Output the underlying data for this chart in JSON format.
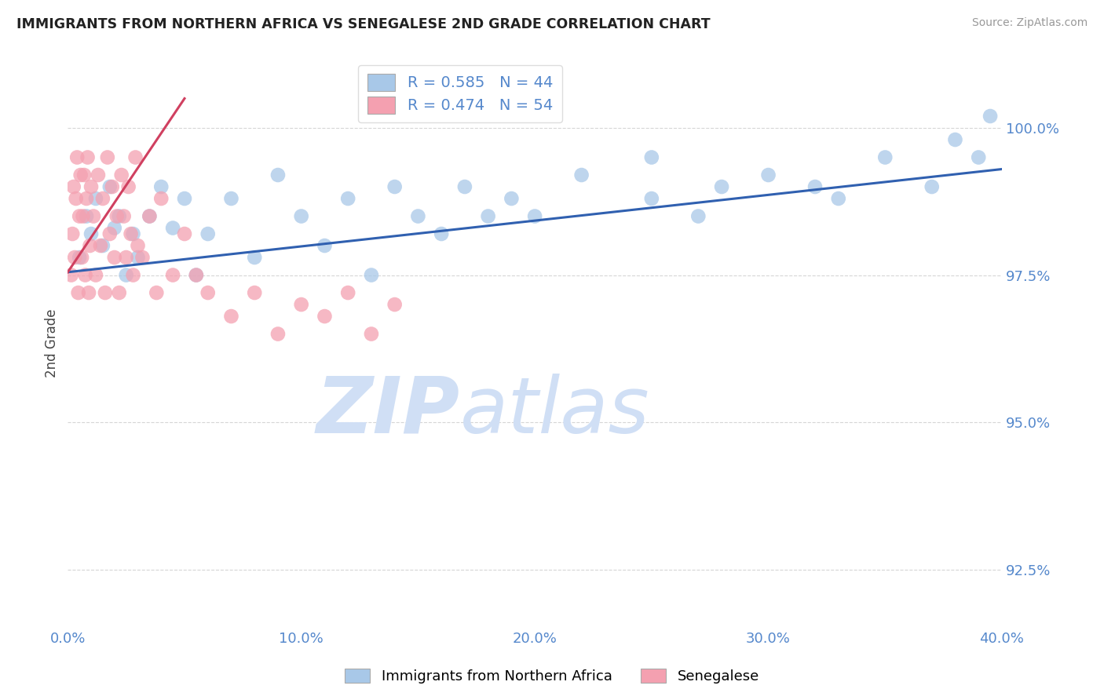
{
  "title": "IMMIGRANTS FROM NORTHERN AFRICA VS SENEGALESE 2ND GRADE CORRELATION CHART",
  "source": "Source: ZipAtlas.com",
  "ylabel": "2nd Grade",
  "xlim": [
    0.0,
    40.0
  ],
  "ylim": [
    91.5,
    101.2
  ],
  "yticks": [
    92.5,
    95.0,
    97.5,
    100.0
  ],
  "xticks": [
    0.0,
    10.0,
    20.0,
    30.0,
    40.0
  ],
  "xtick_labels": [
    "0.0%",
    "10.0%",
    "20.0%",
    "30.0%",
    "40.0%"
  ],
  "ytick_labels": [
    "92.5%",
    "95.0%",
    "97.5%",
    "100.0%"
  ],
  "blue_R": 0.585,
  "blue_N": 44,
  "pink_R": 0.474,
  "pink_N": 54,
  "blue_color": "#a8c8e8",
  "pink_color": "#f4a0b0",
  "blue_line_color": "#3060b0",
  "pink_line_color": "#d04060",
  "watermark_zip": "ZIP",
  "watermark_atlas": "atlas",
  "watermark_color": "#d0dff5",
  "title_color": "#222222",
  "axis_tick_color": "#5588cc",
  "legend_label_color": "#5588cc",
  "legend_R_label_color": "#333333",
  "blue_x": [
    0.5,
    0.8,
    1.0,
    1.2,
    1.5,
    1.8,
    2.0,
    2.2,
    2.5,
    2.8,
    3.0,
    3.5,
    4.0,
    4.5,
    5.0,
    5.5,
    6.0,
    7.0,
    8.0,
    9.0,
    10.0,
    11.0,
    12.0,
    13.0,
    14.0,
    15.0,
    16.0,
    17.0,
    18.0,
    19.0,
    20.0,
    22.0,
    25.0,
    28.0,
    30.0,
    33.0,
    35.0,
    37.0,
    38.0,
    39.0,
    39.5,
    25.0,
    27.0,
    32.0
  ],
  "blue_y": [
    97.8,
    98.5,
    98.2,
    98.8,
    98.0,
    99.0,
    98.3,
    98.5,
    97.5,
    98.2,
    97.8,
    98.5,
    99.0,
    98.3,
    98.8,
    97.5,
    98.2,
    98.8,
    97.8,
    99.2,
    98.5,
    98.0,
    98.8,
    97.5,
    99.0,
    98.5,
    98.2,
    99.0,
    98.5,
    98.8,
    98.5,
    99.2,
    98.8,
    99.0,
    99.2,
    98.8,
    99.5,
    99.0,
    99.8,
    99.5,
    100.2,
    99.5,
    98.5,
    99.0
  ],
  "pink_x": [
    0.15,
    0.2,
    0.25,
    0.3,
    0.35,
    0.4,
    0.45,
    0.5,
    0.55,
    0.6,
    0.65,
    0.7,
    0.75,
    0.8,
    0.85,
    0.9,
    0.95,
    1.0,
    1.1,
    1.2,
    1.3,
    1.4,
    1.5,
    1.6,
    1.7,
    1.8,
    1.9,
    2.0,
    2.1,
    2.2,
    2.3,
    2.4,
    2.5,
    2.6,
    2.7,
    2.8,
    2.9,
    3.0,
    3.2,
    3.5,
    3.8,
    4.0,
    4.5,
    5.0,
    5.5,
    6.0,
    7.0,
    8.0,
    9.0,
    10.0,
    11.0,
    12.0,
    13.0,
    14.0
  ],
  "pink_y": [
    97.5,
    98.2,
    99.0,
    97.8,
    98.8,
    99.5,
    97.2,
    98.5,
    99.2,
    97.8,
    98.5,
    99.2,
    97.5,
    98.8,
    99.5,
    97.2,
    98.0,
    99.0,
    98.5,
    97.5,
    99.2,
    98.0,
    98.8,
    97.2,
    99.5,
    98.2,
    99.0,
    97.8,
    98.5,
    97.2,
    99.2,
    98.5,
    97.8,
    99.0,
    98.2,
    97.5,
    99.5,
    98.0,
    97.8,
    98.5,
    97.2,
    98.8,
    97.5,
    98.2,
    97.5,
    97.2,
    96.8,
    97.2,
    96.5,
    97.0,
    96.8,
    97.2,
    96.5,
    97.0
  ],
  "blue_trend_x0": 0.0,
  "blue_trend_y0": 97.55,
  "blue_trend_x1": 40.0,
  "blue_trend_y1": 99.3,
  "pink_trend_x0": 0.0,
  "pink_trend_y0": 97.55,
  "pink_trend_x1": 5.0,
  "pink_trend_y1": 100.5
}
